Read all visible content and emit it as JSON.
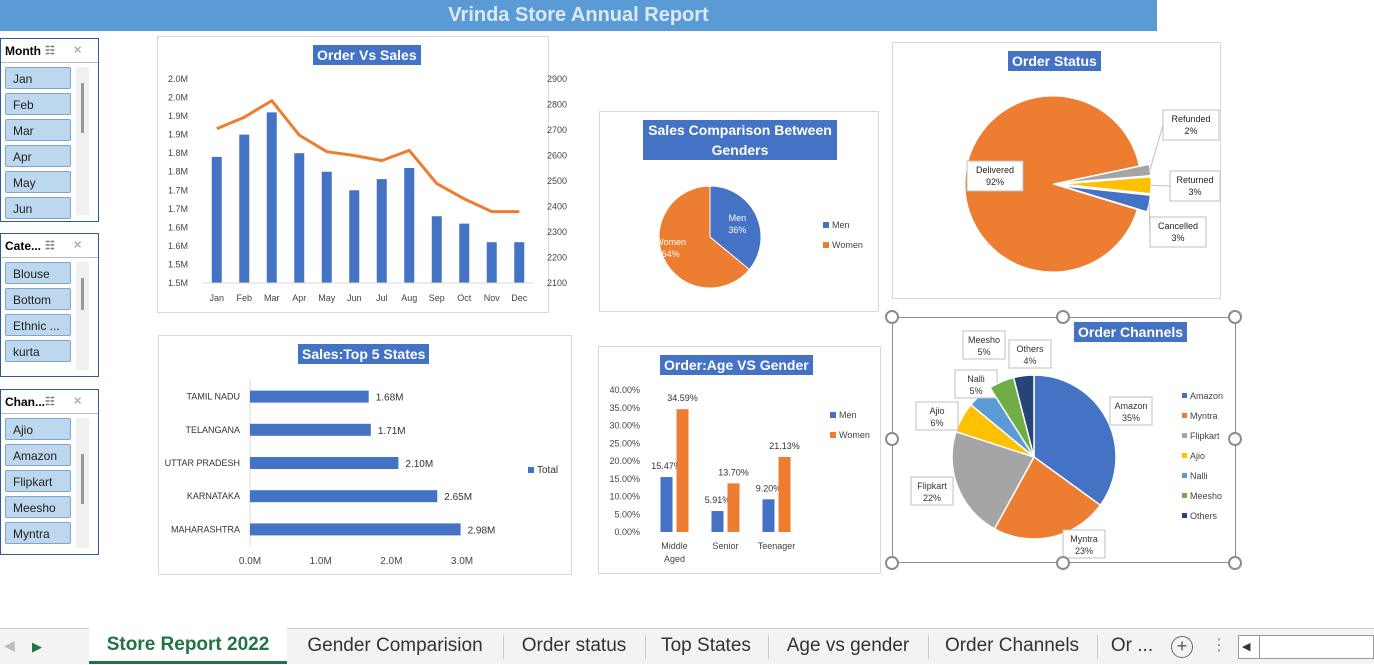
{
  "title": "Vrinda Store Annual Report",
  "slicers": [
    {
      "header": "Month",
      "items": [
        "Jan",
        "Feb",
        "Mar",
        "Apr",
        "May",
        "Jun"
      ]
    },
    {
      "header": "Cate...",
      "items": [
        "Blouse",
        "Bottom",
        "Ethnic ...",
        "kurta"
      ]
    },
    {
      "header": "Chan...",
      "items": [
        "Ajio",
        "Amazon",
        "Flipkart",
        "Meesho",
        "Myntra"
      ]
    }
  ],
  "charts": {
    "order_vs_sales": {
      "title": "Order Vs Sales"
    },
    "top_states": {
      "title": "Sales:Top 5 States",
      "legend": "Total"
    },
    "gender": {
      "title_line1": "Sales Comparison Between",
      "title_line2": "Genders"
    },
    "age_gender": {
      "title": "Order:Age VS Gender"
    },
    "order_status": {
      "title": "Order Status"
    },
    "channels": {
      "title": "Order Channels"
    }
  },
  "chart_data": [
    {
      "type": "bar",
      "title": "Order Vs Sales",
      "categories": [
        "Jan",
        "Feb",
        "Mar",
        "Apr",
        "May",
        "Jun",
        "Jul",
        "Aug",
        "Sep",
        "Oct",
        "Nov",
        "Dec"
      ],
      "series": [
        {
          "kind": "bar",
          "axis": "left",
          "values": [
            1.84,
            1.9,
            1.96,
            1.85,
            1.8,
            1.75,
            1.78,
            1.81,
            1.68,
            1.66,
            1.61,
            1.61
          ]
        },
        {
          "kind": "line",
          "axis": "right",
          "values": [
            2705,
            2750,
            2815,
            2680,
            2615,
            2600,
            2580,
            2620,
            2490,
            2430,
            2380,
            2380
          ]
        }
      ],
      "y_ticks": [
        "1.5M",
        "1.5M",
        "1.6M",
        "1.6M",
        "1.7M",
        "1.7M",
        "1.8M",
        "1.8M",
        "1.9M",
        "1.9M",
        "2.0M",
        "2.0M"
      ],
      "y2_ticks": [
        "2100",
        "2200",
        "2300",
        "2400",
        "2500",
        "2600",
        "2700",
        "2800",
        "2900"
      ],
      "ylim": [
        1.5,
        2.05
      ],
      "y2lim": [
        2100,
        2900
      ]
    },
    {
      "type": "bar",
      "orientation": "horizontal",
      "title": "Sales:Top 5 States",
      "categories": [
        "TAMIL NADU",
        "TELANGANA",
        "UTTAR PRADESH",
        "KARNATAKA",
        "MAHARASHTRA"
      ],
      "values": [
        1.68,
        1.71,
        2.1,
        2.65,
        2.98
      ],
      "labels": [
        "1.68M",
        "1.71M",
        "2.10M",
        "2.65M",
        "2.98M"
      ],
      "series": [
        {
          "name": "Total"
        }
      ],
      "x_ticks": [
        "0.0M",
        "1.0M",
        "2.0M",
        "3.0M"
      ],
      "xlim": [
        0,
        3.0
      ]
    },
    {
      "type": "pie",
      "title": "Sales Comparison Between Genders",
      "slices": [
        {
          "name": "Men",
          "value": 36,
          "label": "36%",
          "color": "#4472c4"
        },
        {
          "name": "Women",
          "value": 64,
          "label": "64%",
          "color": "#ed7d31"
        }
      ]
    },
    {
      "type": "bar",
      "title": "Order:Age VS Gender",
      "categories": [
        "Middle Aged",
        "Senior",
        "Teenager"
      ],
      "series": [
        {
          "name": "Men",
          "values": [
            15.47,
            5.91,
            9.2
          ],
          "labels": [
            "15.47%",
            "5.91%",
            "9.20%"
          ],
          "color": "#4472c4"
        },
        {
          "name": "Women",
          "values": [
            34.59,
            13.7,
            21.13
          ],
          "labels": [
            "34.59%",
            "13.70%",
            "21.13%"
          ],
          "color": "#ed7d31"
        }
      ],
      "y_ticks": [
        "0.00%",
        "5.00%",
        "10.00%",
        "15.00%",
        "20.00%",
        "25.00%",
        "30.00%",
        "35.00%",
        "40.00%"
      ],
      "ylim": [
        0,
        40
      ]
    },
    {
      "type": "pie",
      "title": "Order Status",
      "slices": [
        {
          "name": "Delivered",
          "value": 92,
          "label": "92%",
          "color": "#ed7d31"
        },
        {
          "name": "Refunded",
          "value": 2,
          "label": "2%",
          "color": "#a5a5a5"
        },
        {
          "name": "Returned",
          "value": 3,
          "label": "3%",
          "color": "#ffc000"
        },
        {
          "name": "Cancelled",
          "value": 3,
          "label": "3%",
          "color": "#4472c4"
        }
      ]
    },
    {
      "type": "pie",
      "title": "Order Channels",
      "slices": [
        {
          "name": "Amazon",
          "value": 35,
          "label": "35%",
          "color": "#4472c4"
        },
        {
          "name": "Myntra",
          "value": 23,
          "label": "23%",
          "color": "#ed7d31"
        },
        {
          "name": "Flipkart",
          "value": 22,
          "label": "22%",
          "color": "#a5a5a5"
        },
        {
          "name": "Ajio",
          "value": 6,
          "label": "6%",
          "color": "#ffc000"
        },
        {
          "name": "Nalli",
          "value": 5,
          "label": "5%",
          "color": "#5b9bd5"
        },
        {
          "name": "Meesho",
          "value": 5,
          "label": "5%",
          "color": "#70ad47"
        },
        {
          "name": "Others",
          "value": 4,
          "label": "4%",
          "color": "#264478"
        }
      ]
    }
  ],
  "tabs": [
    "Store Report 2022",
    "Gender Comparision",
    "Order status",
    "Top States",
    "Age vs gender",
    "Order Channels",
    "Or ..."
  ],
  "active_tab": 0,
  "icons": {
    "next_sheet": "triangle-right-icon",
    "add_sheet": "plus-circle-icon",
    "scroll_left": "triangle-left-icon"
  }
}
